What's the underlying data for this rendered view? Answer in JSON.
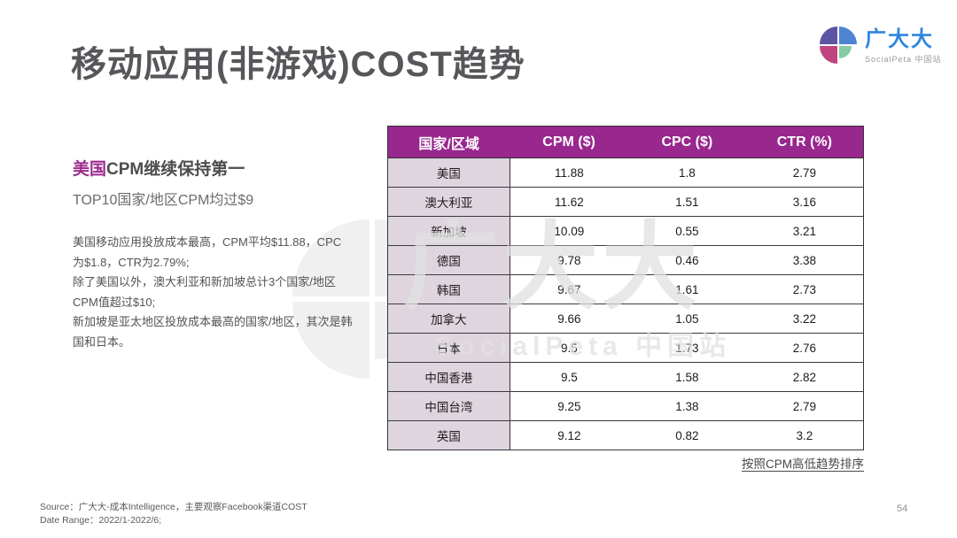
{
  "page": {
    "title": "移动应用(非游戏)COST趋势",
    "page_number": "54"
  },
  "logo": {
    "name": "广大大",
    "subtitle": "SocialPeta 中国站"
  },
  "left_panel": {
    "headline_highlight": "美国",
    "headline_rest": "CPM继续保持第一",
    "subtitle": "TOP10国家/地区CPM均过$9",
    "paragraphs": [
      "美国移动应用投放成本最高，CPM平均$11.88，CPC为$1.8，CTR为2.79%;",
      "除了美国以外，澳大利亚和新加坡总计3个国家/地区CPM值超过$10;",
      "新加坡是亚太地区投放成本最高的国家/地区，其次是韩国和日本。"
    ]
  },
  "table": {
    "headers": [
      "国家/区域",
      "CPM ($)",
      "CPC ($)",
      "CTR (%)"
    ],
    "rows": [
      {
        "country": "美国",
        "cpm": "11.88",
        "cpc": "1.8",
        "ctr": "2.79"
      },
      {
        "country": "澳大利亚",
        "cpm": "11.62",
        "cpc": "1.51",
        "ctr": "3.16"
      },
      {
        "country": "新加坡",
        "cpm": "10.09",
        "cpc": "0.55",
        "ctr": "3.21"
      },
      {
        "country": "德国",
        "cpm": "9.78",
        "cpc": "0.46",
        "ctr": "3.38"
      },
      {
        "country": "韩国",
        "cpm": "9.67",
        "cpc": "1.61",
        "ctr": "2.73"
      },
      {
        "country": "加拿大",
        "cpm": "9.66",
        "cpc": "1.05",
        "ctr": "3.22"
      },
      {
        "country": "日本",
        "cpm": "9.5",
        "cpc": "1.73",
        "ctr": "2.76"
      },
      {
        "country": "中国香港",
        "cpm": "9.5",
        "cpc": "1.58",
        "ctr": "2.82"
      },
      {
        "country": "中国台湾",
        "cpm": "9.25",
        "cpc": "1.38",
        "ctr": "2.79"
      },
      {
        "country": "英国",
        "cpm": "9.12",
        "cpc": "0.82",
        "ctr": "3.2"
      }
    ],
    "sort_note": "按照CPM高低趋势排序"
  },
  "chart_data": {
    "type": "table",
    "title": "移动应用(非游戏)COST趋势",
    "columns": [
      "国家/区域",
      "CPM ($)",
      "CPC ($)",
      "CTR (%)"
    ],
    "rows": [
      [
        "美国",
        11.88,
        1.8,
        2.79
      ],
      [
        "澳大利亚",
        11.62,
        1.51,
        3.16
      ],
      [
        "新加坡",
        10.09,
        0.55,
        3.21
      ],
      [
        "德国",
        9.78,
        0.46,
        3.38
      ],
      [
        "韩国",
        9.67,
        1.61,
        2.73
      ],
      [
        "加拿大",
        9.66,
        1.05,
        3.22
      ],
      [
        "日本",
        9.5,
        1.73,
        2.76
      ],
      [
        "中国香港",
        9.5,
        1.58,
        2.82
      ],
      [
        "中国台湾",
        9.25,
        1.38,
        2.79
      ],
      [
        "英国",
        9.12,
        0.82,
        3.2
      ]
    ],
    "note": "按照CPM高低趋势排序"
  },
  "watermark": {
    "text": "广大大",
    "subtext": "SocialPeta 中国站"
  },
  "footer": {
    "source": "Source：广大大-成本Intelligence，主要观察Facebook渠道COST",
    "date_range": "Date Range：2022/1-2022/6;"
  },
  "colors": {
    "table_header_purple": "#98278e",
    "table_label_bg": "#dfd5df",
    "highlight_purple": "#9b2c90",
    "logo_blue": "#2e87df",
    "title_gray": "#57575b"
  }
}
